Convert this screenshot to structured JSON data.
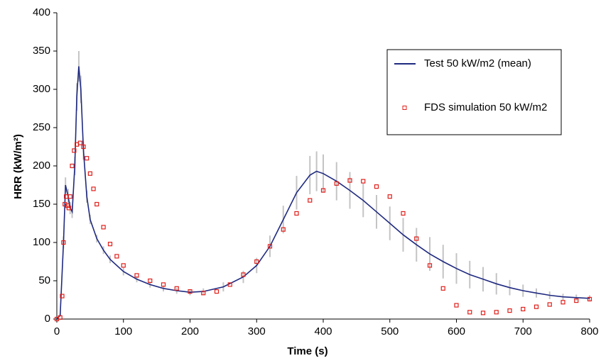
{
  "chart_data": {
    "type": "line",
    "xlabel": "Time (s)",
    "ylabel": "HRR (kW/m²)",
    "xlim": [
      0,
      800
    ],
    "xticks": [
      0,
      100,
      200,
      300,
      400,
      500,
      600,
      700,
      800
    ],
    "ylim": [
      0,
      400
    ],
    "yticks": [
      0,
      50,
      100,
      150,
      200,
      250,
      300,
      350,
      400
    ],
    "grid": false,
    "legend_position": "upper right",
    "error_color": "#c4c4c4",
    "series": [
      {
        "name": "Test 50 kW/m2 (mean)",
        "color": "#1f2a80",
        "marker": "line",
        "x": [
          0,
          5,
          10,
          13,
          17,
          20,
          23,
          27,
          30,
          33,
          36,
          40,
          45,
          50,
          60,
          70,
          80,
          100,
          120,
          140,
          160,
          180,
          200,
          220,
          250,
          280,
          300,
          320,
          340,
          360,
          380,
          390,
          400,
          420,
          440,
          460,
          480,
          500,
          520,
          540,
          560,
          580,
          600,
          620,
          640,
          660,
          680,
          700,
          720,
          740,
          760,
          780,
          800
        ],
        "values": [
          0,
          5,
          100,
          175,
          160,
          145,
          140,
          200,
          290,
          330,
          300,
          220,
          160,
          130,
          105,
          90,
          78,
          62,
          52,
          45,
          40,
          37,
          35,
          36,
          42,
          55,
          70,
          95,
          130,
          165,
          188,
          193,
          190,
          180,
          168,
          155,
          140,
          125,
          110,
          97,
          85,
          75,
          66,
          58,
          52,
          46,
          41,
          37,
          34,
          31,
          29,
          28,
          27
        ],
        "errors": [
          0,
          2,
          8,
          10,
          10,
          8,
          8,
          12,
          18,
          20,
          18,
          12,
          8,
          6,
          5,
          5,
          5,
          5,
          4,
          4,
          4,
          4,
          4,
          4,
          6,
          8,
          10,
          14,
          18,
          22,
          25,
          26,
          25,
          25,
          24,
          22,
          22,
          22,
          22,
          22,
          22,
          22,
          20,
          18,
          16,
          14,
          10,
          8,
          6,
          5,
          4,
          4,
          4
        ]
      },
      {
        "name": "FDS simulation 50 kW/m2",
        "color": "#e0201b",
        "marker": "square",
        "x": [
          0,
          5,
          8,
          10,
          12,
          14,
          16,
          18,
          20,
          23,
          26,
          30,
          35,
          40,
          45,
          50,
          55,
          60,
          70,
          80,
          90,
          100,
          120,
          140,
          160,
          180,
          200,
          220,
          240,
          260,
          280,
          300,
          320,
          340,
          360,
          380,
          400,
          420,
          440,
          460,
          480,
          500,
          520,
          540,
          560,
          580,
          600,
          620,
          640,
          660,
          680,
          700,
          720,
          740,
          760,
          780,
          800
        ],
        "values": [
          0,
          2,
          30,
          100,
          150,
          160,
          148,
          145,
          160,
          200,
          220,
          228,
          230,
          225,
          210,
          190,
          170,
          150,
          120,
          98,
          82,
          70,
          57,
          50,
          45,
          40,
          36,
          34,
          36,
          45,
          58,
          75,
          95,
          117,
          138,
          155,
          168,
          177,
          181,
          180,
          173,
          160,
          138,
          105,
          70,
          40,
          18,
          9,
          8,
          9,
          11,
          13,
          16,
          19,
          22,
          24,
          26
        ]
      }
    ]
  }
}
